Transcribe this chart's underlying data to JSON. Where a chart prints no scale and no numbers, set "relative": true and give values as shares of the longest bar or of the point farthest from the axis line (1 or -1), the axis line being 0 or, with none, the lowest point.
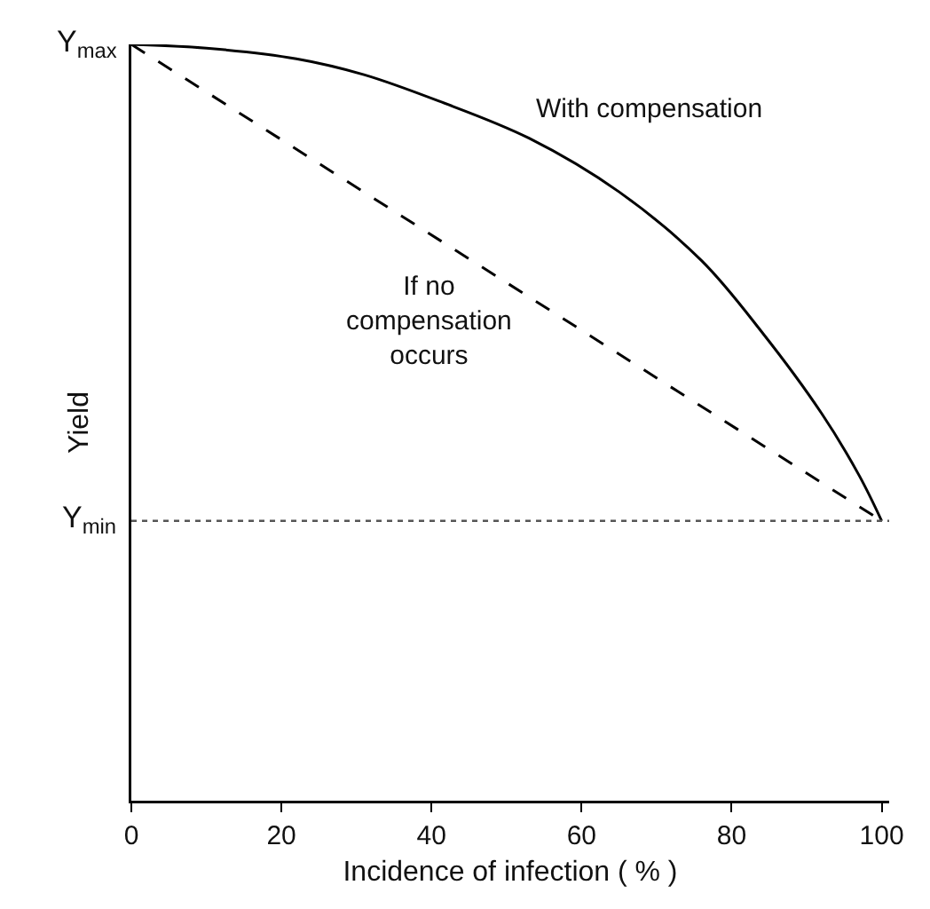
{
  "chart_data": {
    "type": "line",
    "relative": true,
    "xlabel": "Incidence of infection ( % )",
    "ylabel": "Yield",
    "xlim": [
      0,
      101
    ],
    "xticks": [
      0,
      20,
      40,
      60,
      80,
      100
    ],
    "grid": false,
    "legend": false,
    "marker": "none",
    "series": [
      {
        "name": "With compensation",
        "color": "#000000",
        "line_style": "solid",
        "x": [
          0,
          10,
          22,
          31,
          41,
          53,
          65,
          76,
          84,
          92,
          97,
          100
        ],
        "values": [
          1,
          0.995,
          0.981,
          0.96,
          0.925,
          0.876,
          0.805,
          0.714,
          0.62,
          0.512,
          0.43,
          0.37
        ]
      },
      {
        "name": "If no compensation occurs",
        "color": "#000000",
        "line_style": "dashed",
        "x": [
          0,
          100
        ],
        "values": [
          1,
          0.37
        ]
      }
    ],
    "ref_lines": [
      {
        "axis": "y",
        "value": 0.37,
        "label": "Y$_{min}$",
        "line_style": "dotted",
        "color": "#555555"
      }
    ],
    "annotations": [
      {
        "text": "Y$_{max}$",
        "x": 0,
        "y": 1
      }
    ]
  }
}
